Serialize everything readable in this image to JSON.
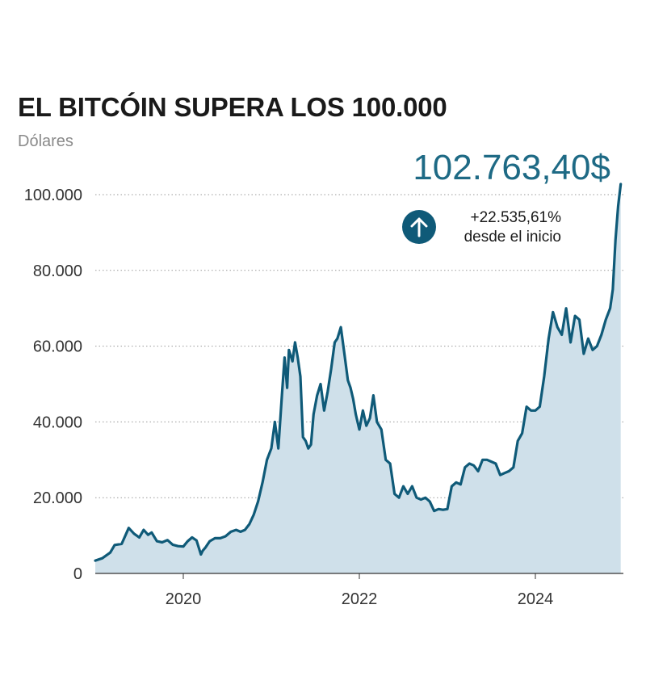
{
  "chart_data": {
    "type": "area",
    "title": "EL BITCÓIN SUPERA LOS 100.000",
    "ylabel": "Dólares",
    "xlabel": "",
    "ylim": [
      0,
      100000
    ],
    "xlim": [
      2019.0,
      2025.0
    ],
    "yticks": [
      {
        "value": 0,
        "label": "0"
      },
      {
        "value": 20000,
        "label": "20.000"
      },
      {
        "value": 40000,
        "label": "40.000"
      },
      {
        "value": 60000,
        "label": "60.000"
      },
      {
        "value": 80000,
        "label": "80.000"
      },
      {
        "value": 100000,
        "label": "100.000"
      }
    ],
    "xticks": [
      {
        "value": 2020,
        "label": "2020"
      },
      {
        "value": 2022,
        "label": "2022"
      },
      {
        "value": 2024,
        "label": "2024"
      }
    ],
    "grid": "horizontal-dotted",
    "colors": {
      "line": "#0f5a78",
      "fill": "#cfe0ea",
      "accent": "#1e6a85"
    },
    "annotation": {
      "value": "102.763,40$",
      "change": "+22.535,61%",
      "change_note": "desde el inicio",
      "icon": "arrow-up-icon"
    },
    "series": [
      {
        "x": [
          2019.0,
          2019.08,
          2019.17,
          2019.22,
          2019.3,
          2019.38,
          2019.44,
          2019.5,
          2019.55,
          2019.6,
          2019.64,
          2019.7,
          2019.76,
          2019.82,
          2019.88,
          2019.94,
          2020.0,
          2020.05,
          2020.1,
          2020.15,
          2020.2,
          2020.22,
          2020.25,
          2020.3,
          2020.36,
          2020.42,
          2020.48,
          2020.54,
          2020.6,
          2020.65,
          2020.7,
          2020.75,
          2020.8,
          2020.85,
          2020.9,
          2020.95,
          2021.0,
          2021.04,
          2021.08,
          2021.12,
          2021.15,
          2021.18,
          2021.2,
          2021.24,
          2021.27,
          2021.3,
          2021.33,
          2021.36,
          2021.39,
          2021.42,
          2021.45,
          2021.48,
          2021.52,
          2021.56,
          2021.6,
          2021.64,
          2021.68,
          2021.72,
          2021.75,
          2021.79,
          2021.83,
          2021.87,
          2021.9,
          2021.93,
          2021.96,
          2022.0,
          2022.04,
          2022.08,
          2022.12,
          2022.16,
          2022.2,
          2022.25,
          2022.3,
          2022.35,
          2022.4,
          2022.45,
          2022.5,
          2022.55,
          2022.6,
          2022.65,
          2022.7,
          2022.75,
          2022.8,
          2022.85,
          2022.9,
          2022.95,
          2023.0,
          2023.05,
          2023.1,
          2023.15,
          2023.2,
          2023.25,
          2023.3,
          2023.35,
          2023.4,
          2023.45,
          2023.5,
          2023.55,
          2023.6,
          2023.65,
          2023.7,
          2023.75,
          2023.8,
          2023.85,
          2023.9,
          2023.95,
          2024.0,
          2024.05,
          2024.1,
          2024.15,
          2024.2,
          2024.25,
          2024.3,
          2024.35,
          2024.4,
          2024.45,
          2024.5,
          2024.55,
          2024.6,
          2024.65,
          2024.7,
          2024.75,
          2024.8,
          2024.85,
          2024.88,
          2024.91,
          2024.94,
          2024.97
        ],
        "y": [
          3400,
          4000,
          5500,
          7500,
          7800,
          12000,
          10500,
          9500,
          11500,
          10200,
          10800,
          8500,
          8200,
          8800,
          7600,
          7200,
          7100,
          8500,
          9500,
          8700,
          5000,
          6000,
          6800,
          8500,
          9300,
          9300,
          9800,
          11000,
          11500,
          11000,
          11500,
          13000,
          15500,
          19000,
          24000,
          30000,
          33000,
          40000,
          33000,
          47000,
          57000,
          49000,
          59000,
          56000,
          61000,
          57000,
          52000,
          36000,
          35000,
          33000,
          34000,
          42000,
          47000,
          50000,
          43000,
          48000,
          54000,
          61000,
          62000,
          65000,
          58000,
          51000,
          49000,
          46000,
          42000,
          38000,
          43000,
          39000,
          41000,
          47000,
          40000,
          38000,
          30000,
          29000,
          21000,
          20000,
          23000,
          21000,
          23000,
          20000,
          19500,
          20000,
          19000,
          16500,
          17000,
          16800,
          17000,
          23000,
          24000,
          23500,
          28000,
          29000,
          28500,
          27000,
          30000,
          30000,
          29500,
          29000,
          26000,
          26500,
          27000,
          28000,
          35000,
          37000,
          44000,
          43000,
          43000,
          44000,
          52000,
          62000,
          69000,
          65000,
          63000,
          70000,
          61000,
          68000,
          67000,
          58000,
          62000,
          59000,
          60000,
          63000,
          67000,
          70000,
          75000,
          88000,
          97000,
          102763
        ]
      }
    ]
  }
}
